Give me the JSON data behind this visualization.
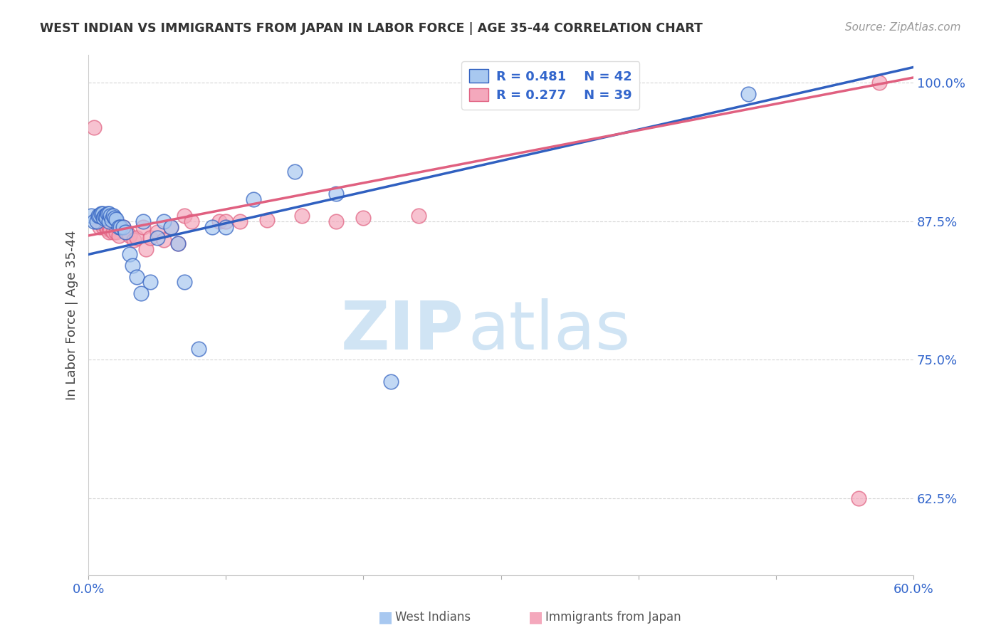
{
  "title": "WEST INDIAN VS IMMIGRANTS FROM JAPAN IN LABOR FORCE | AGE 35-44 CORRELATION CHART",
  "source": "Source: ZipAtlas.com",
  "ylabel": "In Labor Force | Age 35-44",
  "xlim": [
    0.0,
    0.6
  ],
  "ylim": [
    0.555,
    1.025
  ],
  "xticks": [
    0.0,
    0.1,
    0.2,
    0.3,
    0.4,
    0.5,
    0.6
  ],
  "xticklabels": [
    "0.0%",
    "",
    "",
    "",
    "",
    "",
    "60.0%"
  ],
  "yticks": [
    0.625,
    0.75,
    0.875,
    1.0
  ],
  "yticklabels": [
    "62.5%",
    "75.0%",
    "87.5%",
    "100.0%"
  ],
  "legend_r_blue": "R = 0.481",
  "legend_n_blue": "N = 42",
  "legend_r_pink": "R = 0.277",
  "legend_n_pink": "N = 39",
  "blue_color": "#A8C8F0",
  "pink_color": "#F4A8BC",
  "line_blue": "#3060C0",
  "line_pink": "#E06080",
  "watermark_zip": "ZIP",
  "watermark_atlas": "atlas",
  "watermark_color": "#D0E4F4",
  "blue_x": [
    0.002,
    0.004,
    0.006,
    0.007,
    0.008,
    0.009,
    0.01,
    0.011,
    0.012,
    0.013,
    0.013,
    0.014,
    0.015,
    0.015,
    0.016,
    0.017,
    0.018,
    0.019,
    0.02,
    0.022,
    0.023,
    0.025,
    0.027,
    0.03,
    0.032,
    0.035,
    0.038,
    0.04,
    0.045,
    0.05,
    0.055,
    0.06,
    0.065,
    0.07,
    0.08,
    0.09,
    0.1,
    0.12,
    0.15,
    0.18,
    0.22,
    0.48
  ],
  "blue_y": [
    0.88,
    0.875,
    0.875,
    0.88,
    0.88,
    0.882,
    0.882,
    0.878,
    0.88,
    0.88,
    0.878,
    0.882,
    0.882,
    0.875,
    0.88,
    0.876,
    0.88,
    0.878,
    0.877,
    0.87,
    0.87,
    0.87,
    0.865,
    0.845,
    0.835,
    0.825,
    0.81,
    0.875,
    0.82,
    0.86,
    0.875,
    0.87,
    0.855,
    0.82,
    0.76,
    0.87,
    0.87,
    0.895,
    0.92,
    0.9,
    0.73,
    0.99
  ],
  "pink_x": [
    0.004,
    0.007,
    0.008,
    0.009,
    0.01,
    0.011,
    0.012,
    0.013,
    0.014,
    0.015,
    0.015,
    0.016,
    0.018,
    0.02,
    0.022,
    0.025,
    0.028,
    0.03,
    0.033,
    0.035,
    0.04,
    0.042,
    0.045,
    0.05,
    0.055,
    0.06,
    0.065,
    0.07,
    0.075,
    0.095,
    0.1,
    0.11,
    0.13,
    0.155,
    0.18,
    0.2,
    0.24,
    0.56,
    0.575
  ],
  "pink_y": [
    0.96,
    0.875,
    0.87,
    0.875,
    0.872,
    0.87,
    0.875,
    0.87,
    0.868,
    0.87,
    0.865,
    0.868,
    0.865,
    0.865,
    0.862,
    0.87,
    0.865,
    0.862,
    0.858,
    0.86,
    0.87,
    0.85,
    0.86,
    0.865,
    0.858,
    0.87,
    0.855,
    0.88,
    0.875,
    0.875,
    0.875,
    0.875,
    0.876,
    0.88,
    0.875,
    0.878,
    0.88,
    0.625,
    1.0
  ]
}
